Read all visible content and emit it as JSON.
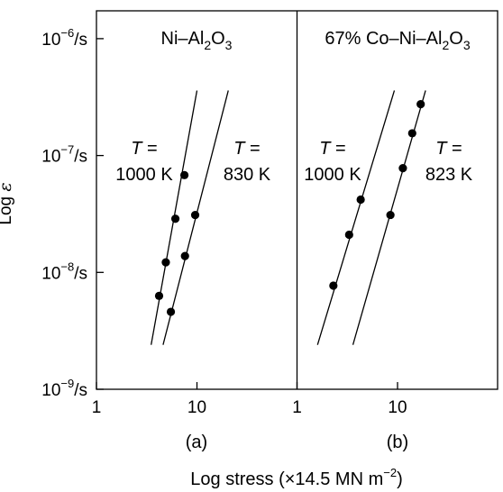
{
  "chart_data": {
    "type": "scatter",
    "ylabel": {
      "base": "Log ",
      "symbol": "ε"
    },
    "xlabel": {
      "text": "Log stress (×14.5 MN m",
      "sup": "−2",
      "close": ")"
    },
    "yscale": "log",
    "xscale": "log",
    "ylim": [
      1e-09,
      5e-06
    ],
    "y_ticks": [
      {
        "value": 1e-06,
        "base": "10",
        "exp": "−6",
        "unit": "/s"
      },
      {
        "value": 1e-07,
        "base": "10",
        "exp": "−7",
        "unit": "/s"
      },
      {
        "value": 1e-08,
        "base": "10",
        "exp": "−8",
        "unit": "/s"
      },
      {
        "value": 1e-09,
        "base": "10",
        "exp": "−9",
        "unit": "/s"
      }
    ],
    "panels": [
      {
        "id": "a",
        "caption": "(a)",
        "title": {
          "pre": "Ni–Al",
          "sub1": "2",
          "mid": "O",
          "sub2": "3",
          "post": ""
        },
        "xlim": [
          1,
          70
        ],
        "x_ticks": [
          {
            "value": 1,
            "label": "1"
          },
          {
            "value": 10,
            "label": "10"
          }
        ],
        "series": [
          {
            "name_line1": "T =",
            "name_line2": "1000 K",
            "points": [
              [
                4.2,
                6.3e-09
              ],
              [
                4.9,
                1.22e-08
              ],
              [
                6.1,
                2.88e-08
              ],
              [
                7.5,
                6.8e-08
              ]
            ],
            "fit": [
              [
                3.5,
                2.4e-09
              ],
              [
                10.0,
                3.6e-07
              ]
            ]
          },
          {
            "name_line1": "T =",
            "name_line2": "830 K",
            "points": [
              [
                5.5,
                4.6e-09
              ],
              [
                7.6,
                1.38e-08
              ],
              [
                9.6,
                3.1e-08
              ]
            ],
            "fit": [
              [
                4.6,
                2.4e-09
              ],
              [
                20.5,
                3.6e-07
              ]
            ]
          }
        ]
      },
      {
        "id": "b",
        "caption": "(b)",
        "title": {
          "pre": "67% Co–Ni–Al",
          "sub1": "2",
          "mid": "O",
          "sub2": "3",
          "post": ""
        },
        "xlim": [
          1,
          70
        ],
        "x_ticks": [
          {
            "value": 1,
            "label": "1"
          },
          {
            "value": 10,
            "label": "10"
          }
        ],
        "series": [
          {
            "name_line1": "T =",
            "name_line2": "1000 K",
            "points": [
              [
                2.3,
                7.7e-09
              ],
              [
                3.3,
                2.1e-08
              ],
              [
                4.3,
                4.2e-08
              ]
            ],
            "fit": [
              [
                1.6,
                2.4e-09
              ],
              [
                9.3,
                3.6e-07
              ]
            ]
          },
          {
            "name_line1": "T =",
            "name_line2": "823 K",
            "points": [
              [
                8.5,
                3.1e-08
              ],
              [
                11.3,
                7.8e-08
              ],
              [
                14.0,
                1.55e-07
              ],
              [
                17.0,
                2.75e-07
              ]
            ],
            "fit": [
              [
                3.6,
                2.4e-09
              ],
              [
                19.0,
                3.6e-07
              ]
            ]
          }
        ]
      }
    ]
  }
}
